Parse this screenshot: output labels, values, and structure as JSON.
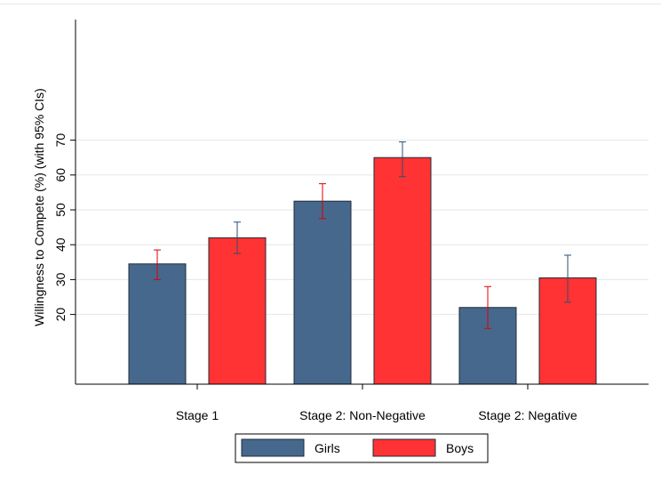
{
  "chart_data": {
    "type": "bar",
    "title": "",
    "xlabel": "",
    "ylabel": "Willingness to Compete (%) (with 95% CIs)",
    "ylim": [
      0,
      70
    ],
    "yticks": [
      20,
      30,
      40,
      50,
      60,
      70
    ],
    "grid": true,
    "legend_position": "bottom",
    "categories": [
      "Stage 1",
      "Stage 2: Non-Negative",
      "Stage 2: Negative"
    ],
    "series": [
      {
        "name": "Girls",
        "color": "#46688c",
        "values": [
          34.5,
          52.5,
          22.0
        ],
        "ci_low": [
          30.0,
          47.5,
          16.0
        ],
        "ci_high": [
          38.5,
          57.5,
          28.0
        ],
        "errorbar_color": "#e00000"
      },
      {
        "name": "Boys",
        "color": "#ff3333",
        "values": [
          42.0,
          65.0,
          30.5
        ],
        "ci_low": [
          37.5,
          59.5,
          23.5
        ],
        "ci_high": [
          46.5,
          69.5,
          37.0
        ],
        "errorbar_color": "#2f4f6f"
      }
    ]
  }
}
